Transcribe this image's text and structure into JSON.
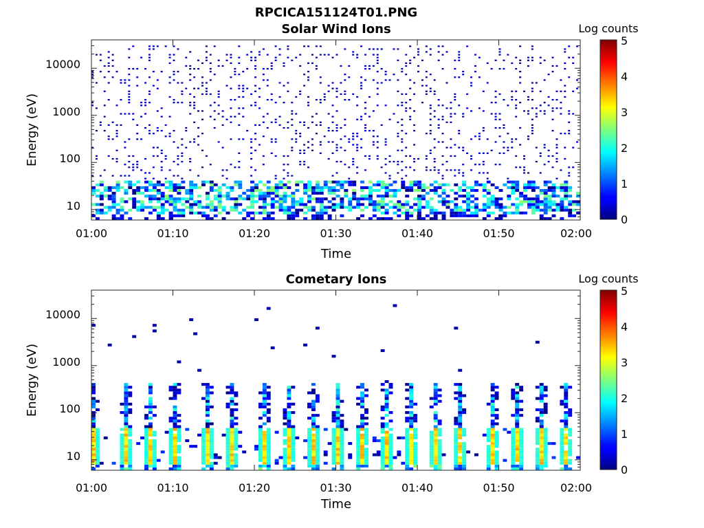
{
  "figure_title": "RPCICA151124T01.PNG",
  "chart_data": [
    {
      "type": "heatmap",
      "title": "Solar Wind Ions",
      "xlabel": "Time",
      "ylabel": "Energy (eV)",
      "x_ticks": [
        "01:00",
        "01:10",
        "01:20",
        "01:30",
        "01:40",
        "01:50",
        "02:00"
      ],
      "xlim": [
        "01:00",
        "02:00"
      ],
      "y_scale": "log",
      "y_ticks": [
        "10",
        "100",
        "1000",
        "10000"
      ],
      "ylim": [
        6,
        40000
      ],
      "colorbar": {
        "label": "Log counts",
        "ticks": [
          "0",
          "1",
          "2",
          "3",
          "4",
          "5"
        ],
        "range": [
          0,
          5
        ]
      },
      "pattern": "sparse",
      "band_energy_eV": [
        8,
        40
      ],
      "band_peak_log_counts": 2.6,
      "background_level_log_counts": 0.3
    },
    {
      "type": "heatmap",
      "title": "Cometary Ions",
      "xlabel": "Time",
      "ylabel": "Energy (eV)",
      "x_ticks": [
        "01:00",
        "01:10",
        "01:20",
        "01:30",
        "01:40",
        "01:50",
        "02:00"
      ],
      "xlim": [
        "01:00",
        "02:00"
      ],
      "y_scale": "log",
      "y_ticks": [
        "10",
        "100",
        "1000",
        "10000"
      ],
      "ylim": [
        6,
        40000
      ],
      "colorbar": {
        "label": "Log counts",
        "ticks": [
          "0",
          "1",
          "2",
          "3",
          "4",
          "5"
        ],
        "range": [
          0,
          5
        ]
      },
      "pattern": "bursty",
      "band_energy_eV": [
        8,
        45
      ],
      "band_peak_log_counts": 3.6,
      "burst_times": [
        "01:00",
        "01:04",
        "01:07",
        "01:10",
        "01:14",
        "01:17",
        "01:21",
        "01:24",
        "01:27",
        "01:30",
        "01:33",
        "01:36",
        "01:39",
        "01:42",
        "01:45",
        "01:49",
        "01:52",
        "01:55",
        "01:58"
      ]
    }
  ]
}
